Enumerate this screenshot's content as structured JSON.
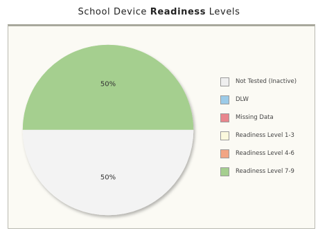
{
  "chart_data": {
    "type": "pie",
    "title": {
      "prefix": "School Device ",
      "bold": "Readiness",
      "suffix": " Levels"
    },
    "slices": [
      {
        "label": "Readiness Level 7-9",
        "value": 50,
        "display": "50%",
        "color": "#a5cf8f"
      },
      {
        "label": "Not Tested (Inactive)",
        "value": 50,
        "display": "50%",
        "color": "#f3f3f3"
      }
    ],
    "legend": {
      "position": "right",
      "entries": [
        {
          "label": "Not Tested (Inactive)",
          "color": "#efefef"
        },
        {
          "label": "DLW",
          "color": "#9ccbe8"
        },
        {
          "label": "Missing Data",
          "color": "#e8868d"
        },
        {
          "label": "Readiness Level 1-3",
          "color": "#fbf9dd"
        },
        {
          "label": "Readiness Level 4-6",
          "color": "#f2a584"
        },
        {
          "label": "Readiness Level 7-9",
          "color": "#a5cf8f"
        }
      ]
    }
  }
}
